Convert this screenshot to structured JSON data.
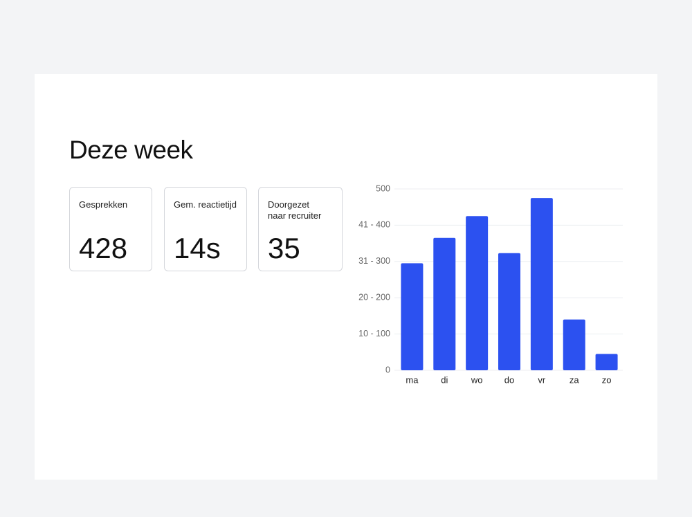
{
  "header": {
    "title": "Deze week"
  },
  "kpis": [
    {
      "label": "Gesprekken",
      "value": 428
    },
    {
      "label": "Gem. reactietijd",
      "value": "14s"
    },
    {
      "label": "Doorgezet naar recruiter",
      "value": 35
    }
  ],
  "chart_data": {
    "type": "bar",
    "categories": [
      "ma",
      "di",
      "wo",
      "do",
      "vr",
      "za",
      "zo"
    ],
    "values": [
      295,
      365,
      425,
      323,
      475,
      140,
      45
    ],
    "color": "#2c51f0",
    "ylim": [
      0,
      500
    ],
    "yticks": [
      0,
      {
        "value": 100,
        "label": "10 - 100"
      },
      {
        "value": 200,
        "label": "20 - 200"
      },
      {
        "value": 300,
        "label": "31 - 300"
      },
      {
        "value": 400,
        "label": "41 - 400"
      },
      500
    ],
    "grid": true
  }
}
